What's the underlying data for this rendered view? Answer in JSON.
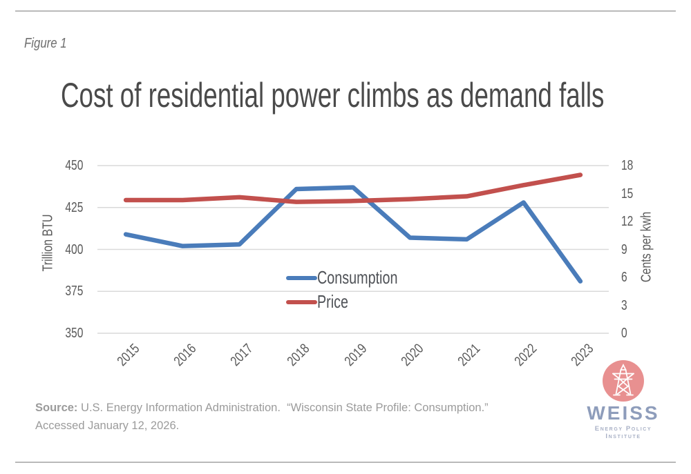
{
  "page": {
    "figure_label": "Figure 1",
    "title": "Cost of residential power climbs as demand falls"
  },
  "source": {
    "label": "Source:",
    "line1_rest": " U.S. Energy Information Administration.  “Wisconsin State Profile: Consumption.”",
    "line2": "Accessed January 12, 2026."
  },
  "logo": {
    "name": "WEISS",
    "tagline": "Energy Policy Institute",
    "icon": "transmission-tower-icon",
    "circle_color": "#e89090",
    "wordmark_color": "#8e9dbb"
  },
  "chart_data": {
    "type": "line",
    "categories": [
      "2015",
      "2016",
      "2017",
      "2018",
      "2019",
      "2020",
      "2021",
      "2022",
      "2023"
    ],
    "series": [
      {
        "name": "Consumption",
        "axis": "left",
        "color": "#4a7cba",
        "values": [
          409,
          402,
          403,
          436,
          437,
          407,
          406,
          428,
          381
        ]
      },
      {
        "name": "Price",
        "axis": "right",
        "color": "#c2504d",
        "values": [
          14.3,
          14.3,
          14.6,
          14.1,
          14.2,
          14.4,
          14.7,
          15.9,
          17.0
        ]
      }
    ],
    "left_axis": {
      "label": "Trillion BTU",
      "min": 350,
      "max": 450,
      "ticks": [
        450,
        425,
        400,
        375,
        350
      ]
    },
    "right_axis": {
      "label": "Cents per kwh",
      "min": 0,
      "max": 18,
      "ticks": [
        18,
        15,
        12,
        9,
        6,
        3,
        0
      ]
    },
    "grid": true,
    "gridline_color": "#d9d9d9",
    "legend_position": "inside-bottom-center"
  }
}
